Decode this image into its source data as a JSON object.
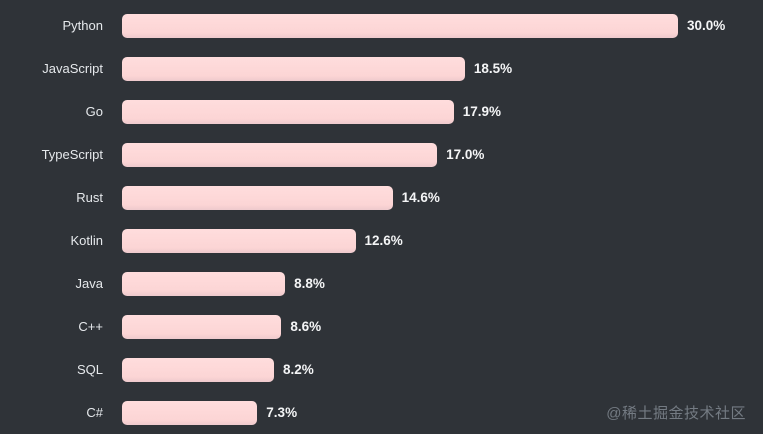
{
  "chart_data": {
    "type": "bar",
    "orientation": "horizontal",
    "title": "",
    "xlabel": "",
    "ylabel": "",
    "categories": [
      "Python",
      "JavaScript",
      "Go",
      "TypeScript",
      "Rust",
      "Kotlin",
      "Java",
      "C++",
      "SQL",
      "C#"
    ],
    "values": [
      30.0,
      18.5,
      17.9,
      17.0,
      14.6,
      12.6,
      8.8,
      8.6,
      8.2,
      7.3
    ],
    "value_labels": [
      "30.0%",
      "18.5%",
      "17.9%",
      "17.0%",
      "14.6%",
      "12.6%",
      "8.8%",
      "8.6%",
      "8.2%",
      "7.3%"
    ],
    "xlim": [
      0,
      30
    ],
    "grid": false,
    "legend": false,
    "bar_color": "#fcd5d5",
    "background_color": "#2f3338",
    "category_label_color": "#e6e9ec",
    "value_label_color": "#f4f5f6"
  },
  "watermark": {
    "text": "@稀土掘金技术社区",
    "color": "#747b83"
  }
}
